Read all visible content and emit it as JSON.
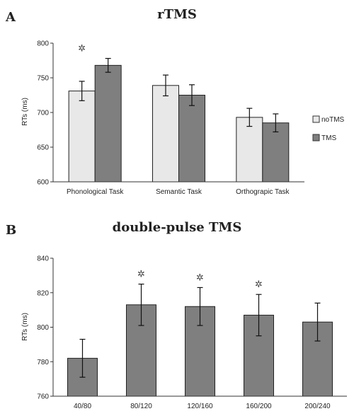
{
  "chart_data": [
    {
      "type": "bar",
      "panel_label": "A",
      "title": "rTMS",
      "ylabel": "RTs (ms)",
      "ylim": [
        600,
        800
      ],
      "yticks": [
        600,
        650,
        700,
        750,
        800
      ],
      "categories": [
        "Phonological Task",
        "Semantic Task",
        "Orthograpic Task"
      ],
      "series": [
        {
          "name": "noTMS",
          "color": "#e8e8e8",
          "values": [
            731,
            739,
            693
          ],
          "errors": [
            14,
            15,
            13
          ]
        },
        {
          "name": "TMS",
          "color": "#7f7f7f",
          "values": [
            768,
            725,
            685
          ],
          "errors": [
            10,
            15,
            13
          ]
        }
      ],
      "significant_categories": [
        0
      ],
      "significance_marker": "✲",
      "legend_placement": "right",
      "grid": false
    },
    {
      "type": "bar",
      "panel_label": "B",
      "title": "double-pulse TMS",
      "ylabel": "RTs (ms)",
      "ylim": [
        760,
        840
      ],
      "yticks": [
        760,
        780,
        800,
        820,
        840
      ],
      "categories": [
        "40/80",
        "80/120",
        "120/160",
        "160/200",
        "200/240"
      ],
      "series": [
        {
          "color": "#7f7f7f",
          "values": [
            782,
            813,
            812,
            807,
            803
          ],
          "errors": [
            11,
            12,
            11,
            12,
            11
          ]
        }
      ],
      "significant_categories": [
        1,
        2,
        3
      ],
      "significance_marker": "✲",
      "grid": false
    }
  ]
}
